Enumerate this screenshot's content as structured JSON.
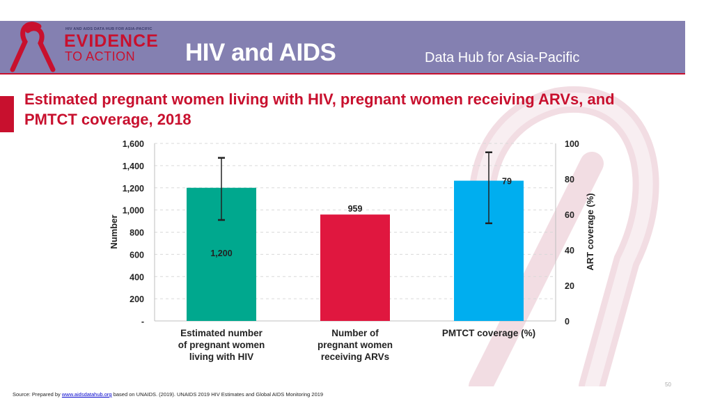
{
  "header": {
    "logo_small_text": "HIV AND AIDS DATA HUB FOR ASIA-PACIFIC",
    "logo_evidence": "EVIDENCE",
    "logo_to_action": "TO ACTION",
    "title": "HIV and AIDS",
    "subtitle": "Data Hub for Asia-Pacific"
  },
  "slide_title": "Estimated pregnant women living with HIV, pregnant women receiving ARVs, and PMTCT coverage, 2018",
  "chart_data": {
    "type": "bar",
    "categories": [
      [
        "Estimated number",
        "of pregnant women",
        "living with HIV"
      ],
      [
        "Number of",
        "pregnant women",
        "receiving ARVs"
      ],
      [
        "PMTCT coverage (%)"
      ]
    ],
    "values": [
      1200,
      959,
      79
    ],
    "axis": [
      "left",
      "left",
      "right"
    ],
    "data_labels": [
      "1,200",
      "959",
      "79"
    ],
    "error_bars": [
      {
        "low": 910,
        "high": 1470
      },
      null,
      {
        "low": 55,
        "high": 95
      }
    ],
    "colors": [
      "#00a88e",
      "#e0173f",
      "#00aeef"
    ],
    "ylabel_left": "Number",
    "ylabel_right": "ART coverage (%)",
    "ylim_left": [
      0,
      1600
    ],
    "ylim_right": [
      0,
      100
    ],
    "left_ticks": [
      {
        "value": 0,
        "label": "-"
      },
      {
        "value": 200,
        "label": "200"
      },
      {
        "value": 400,
        "label": "400"
      },
      {
        "value": 600,
        "label": "600"
      },
      {
        "value": 800,
        "label": "800"
      },
      {
        "value": 1000,
        "label": "1,000"
      },
      {
        "value": 1200,
        "label": "1,200"
      },
      {
        "value": 1400,
        "label": "1,400"
      },
      {
        "value": 1600,
        "label": "1,600"
      }
    ],
    "right_ticks": [
      {
        "value": 0,
        "label": "0"
      },
      {
        "value": 20,
        "label": "20"
      },
      {
        "value": 40,
        "label": "40"
      },
      {
        "value": 60,
        "label": "60"
      },
      {
        "value": 80,
        "label": "80"
      },
      {
        "value": 100,
        "label": "100"
      }
    ],
    "grid": true,
    "legend": "none"
  },
  "footer": {
    "prefix": "Source: Prepared by",
    "link": "www.aidsdatahub.org",
    "suffix": "based on UNAIDS. (2019). UNAIDS 2019 HIV Estimates and Global AIDS Monitoring 2019"
  },
  "page_number": "50",
  "colors": {
    "header_bg": "#8480b1",
    "accent": "#c8102e",
    "ribbon_watermark": "#f2dde3"
  }
}
